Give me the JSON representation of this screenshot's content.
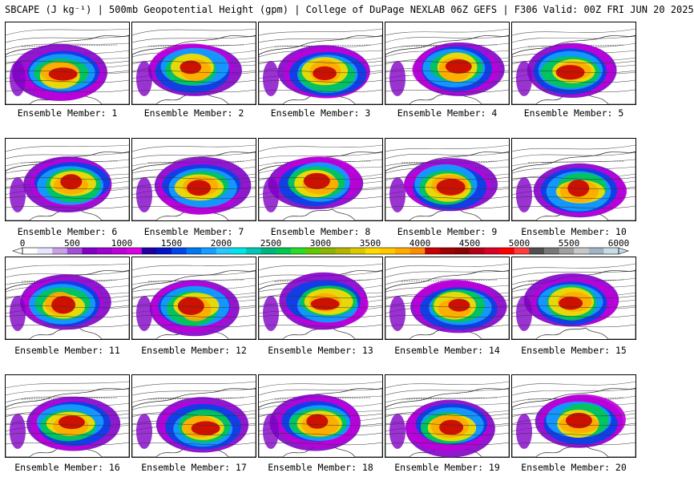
{
  "title": "SBCAPE (J kg⁻¹) | 500mb Geopotential Height (gpm) | College of DuPage NEXLAB 06Z GEFS | F306 Valid: 00Z FRI JUN 20 2025",
  "colorbar": {
    "tick_labels": [
      "0",
      "500",
      "1000",
      "1500",
      "2000",
      "2500",
      "3000",
      "3500",
      "4000",
      "4500",
      "5000",
      "5500",
      "6000"
    ],
    "range": [
      0,
      6000
    ],
    "colors": [
      "#ffffff",
      "#e6e6ff",
      "#c8a0e6",
      "#a050d2",
      "#8200c8",
      "#a000d2",
      "#be00dc",
      "#dc00e6",
      "#1e00a0",
      "#0014c8",
      "#0046e6",
      "#0078f0",
      "#14a0ff",
      "#28c8ff",
      "#00e6e6",
      "#00c8b4",
      "#00b482",
      "#00c850",
      "#28dc28",
      "#64c800",
      "#8cb400",
      "#b4b400",
      "#dcc800",
      "#ffdc00",
      "#ffc800",
      "#ffaa00",
      "#ff8c00",
      "#c80000",
      "#a00000",
      "#8c0000",
      "#b40014",
      "#dc0028",
      "#ff0000",
      "#ff3c3c",
      "#505050",
      "#787878",
      "#a0a0a0",
      "#c8c8c8",
      "#a0b4c8",
      "#c8dce6"
    ]
  },
  "panels": [
    {
      "label": "Ensemble Member: 1"
    },
    {
      "label": "Ensemble Member: 2"
    },
    {
      "label": "Ensemble Member: 3"
    },
    {
      "label": "Ensemble Member: 4"
    },
    {
      "label": "Ensemble Member: 5"
    },
    {
      "label": "Ensemble Member: 6"
    },
    {
      "label": "Ensemble Member: 7"
    },
    {
      "label": "Ensemble Member: 8"
    },
    {
      "label": "Ensemble Member: 9"
    },
    {
      "label": "Ensemble Member: 10"
    },
    {
      "label": "Ensemble Member: 11"
    },
    {
      "label": "Ensemble Member: 12"
    },
    {
      "label": "Ensemble Member: 13"
    },
    {
      "label": "Ensemble Member: 14"
    },
    {
      "label": "Ensemble Member: 15"
    },
    {
      "label": "Ensemble Member: 16"
    },
    {
      "label": "Ensemble Member: 17"
    },
    {
      "label": "Ensemble Member: 18"
    },
    {
      "label": "Ensemble Member: 19"
    },
    {
      "label": "Ensemble Member: 20"
    }
  ]
}
